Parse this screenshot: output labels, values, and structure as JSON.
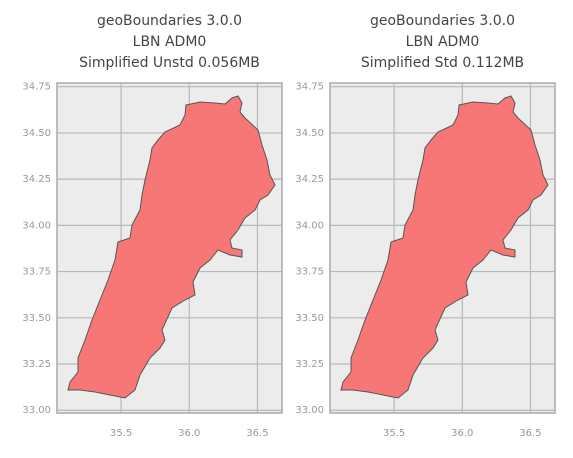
{
  "chart_data": [
    {
      "type": "map",
      "title": [
        "geoBoundaries 3.0.0",
        "LBN ADM0",
        "Simplified Unstd 0.056MB"
      ],
      "xlim": [
        35.03,
        36.68
      ],
      "ylim": [
        32.985,
        34.77
      ],
      "xticks": [
        35.5,
        {
          "value": 36,
          "label": "36.0"
        },
        36.5
      ],
      "yticks": [
        {
          "value": 33,
          "label": "33.00"
        },
        {
          "value": 33.25,
          "label": "33.25"
        },
        {
          "value": 33.5,
          "label": "33.50"
        },
        {
          "value": 33.75,
          "label": "33.75"
        },
        {
          "value": 34,
          "label": "34.00"
        },
        {
          "value": 34.25,
          "label": "34.25"
        },
        {
          "value": 34.5,
          "label": "34.50"
        },
        {
          "value": 34.75,
          "label": "34.75"
        }
      ],
      "grid": true,
      "color": "#f87171"
    },
    {
      "type": "map",
      "title": [
        "geoBoundaries 3.0.0",
        "LBN ADM0",
        "Simplified Std 0.112MB"
      ],
      "xlim": [
        35.03,
        36.68
      ],
      "ylim": [
        32.985,
        34.77
      ],
      "xticks": [
        35.5,
        {
          "value": 36,
          "label": "36.0"
        },
        36.5
      ],
      "yticks": [
        {
          "value": 33,
          "label": "33.00"
        },
        {
          "value": 33.25,
          "label": "33.25"
        },
        {
          "value": 33.5,
          "label": "33.50"
        },
        {
          "value": 33.75,
          "label": "33.75"
        },
        {
          "value": 34,
          "label": "34.00"
        },
        {
          "value": 34.25,
          "label": "34.25"
        },
        {
          "value": 34.5,
          "label": "34.50"
        },
        {
          "value": 34.75,
          "label": "34.75"
        }
      ],
      "grid": true,
      "color": "#f87171"
    }
  ]
}
